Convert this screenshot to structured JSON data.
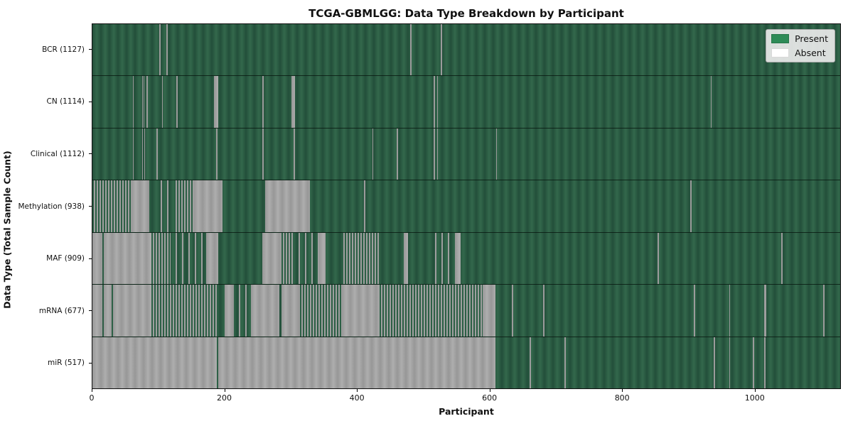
{
  "title": "TCGA-GBMLGG: Data Type Breakdown by Participant",
  "x_axis_label": "Participant",
  "y_axis_label": "Data Type (Total Sample Count)",
  "legend": {
    "present_label": "Present",
    "absent_label": "Absent",
    "present_color": "#2e8b57",
    "absent_color": "#ffffff"
  },
  "colors": {
    "present_fill_dark": "#234f3a",
    "present_fill_light": "#33684c",
    "absent_fill_dark": "#979797",
    "absent_fill_light": "#aeaeae"
  },
  "chart_data": {
    "type": "heatmap",
    "title": "TCGA-GBMLGG: Data Type Breakdown by Participant",
    "xlabel": "Participant",
    "ylabel": "Data Type (Total Sample Count)",
    "x_range": [
      0,
      1130
    ],
    "x_ticks": [
      0,
      200,
      400,
      600,
      800,
      1000
    ],
    "legend_entries": [
      "Present",
      "Absent"
    ],
    "legend_position": "upper right",
    "grid": false,
    "cell_states": {
      "a": "absent",
      "m": "mixed_present_absent",
      "s": "sparse_absent_lines"
    },
    "rows": [
      {
        "label": "BCR (1127)",
        "name": "BCR",
        "total_samples": 1127,
        "segments": [
          [
            101,
            103,
            "a"
          ],
          [
            112,
            114,
            "a"
          ],
          [
            480,
            482,
            "a"
          ],
          [
            526,
            528,
            "a"
          ]
        ]
      },
      {
        "label": "CN (1114)",
        "name": "CN",
        "total_samples": 1114,
        "segments": [
          [
            61,
            62.5,
            "a"
          ],
          [
            75,
            76,
            "a"
          ],
          [
            77,
            78.5,
            "a"
          ],
          [
            82,
            83.5,
            "a"
          ],
          [
            105,
            106.5,
            "a"
          ],
          [
            127,
            128.5,
            "a"
          ],
          [
            184,
            190,
            "a"
          ],
          [
            257,
            258.5,
            "a"
          ],
          [
            301,
            306,
            "a"
          ],
          [
            516,
            517.5,
            "a"
          ],
          [
            521,
            522.5,
            "a"
          ],
          [
            934,
            936,
            "a"
          ]
        ]
      },
      {
        "label": "Clinical (1112)",
        "name": "Clinical",
        "total_samples": 1112,
        "segments": [
          [
            61,
            62.5,
            "a"
          ],
          [
            75,
            76.5,
            "a"
          ],
          [
            78,
            79.5,
            "a"
          ],
          [
            97,
            98.5,
            "a"
          ],
          [
            187,
            189,
            "a"
          ],
          [
            257,
            259,
            "a"
          ],
          [
            304,
            306,
            "a"
          ],
          [
            423,
            424.5,
            "a"
          ],
          [
            460,
            461.5,
            "a"
          ],
          [
            516,
            518,
            "a"
          ],
          [
            521,
            522.5,
            "a"
          ],
          [
            610,
            611.5,
            "a"
          ]
        ]
      },
      {
        "label": "Methylation (938)",
        "name": "Methylation",
        "total_samples": 938,
        "segments": [
          [
            0,
            59,
            "m"
          ],
          [
            59,
            86,
            "a"
          ],
          [
            96,
            123,
            "s"
          ],
          [
            123,
            154,
            "m"
          ],
          [
            154,
            197,
            "a"
          ],
          [
            261,
            329,
            "a"
          ],
          [
            410,
            412,
            "a"
          ],
          [
            903,
            905,
            "a"
          ]
        ]
      },
      {
        "label": "MAF (909)",
        "name": "MAF",
        "total_samples": 909,
        "segments": [
          [
            0,
            15,
            "a"
          ],
          [
            17,
            89,
            "a"
          ],
          [
            89,
            118,
            "m"
          ],
          [
            118,
            172,
            "s"
          ],
          [
            172,
            190,
            "a"
          ],
          [
            257,
            286,
            "a"
          ],
          [
            286,
            304,
            "m"
          ],
          [
            304,
            343,
            "s"
          ],
          [
            343,
            352,
            "a"
          ],
          [
            377,
            434,
            "m"
          ],
          [
            471,
            477,
            "a"
          ],
          [
            510,
            545,
            "s"
          ],
          [
            548,
            556,
            "a"
          ],
          [
            854,
            856,
            "a"
          ],
          [
            1041,
            1043,
            "a"
          ]
        ]
      },
      {
        "label": "mRNA (677)",
        "name": "mRNA",
        "total_samples": 677,
        "segments": [
          [
            0,
            15,
            "a"
          ],
          [
            17,
            29,
            "a"
          ],
          [
            31,
            89,
            "a"
          ],
          [
            89,
            190,
            "m"
          ],
          [
            200,
            214,
            "a"
          ],
          [
            214,
            239,
            "s"
          ],
          [
            239,
            282,
            "a"
          ],
          [
            286,
            314,
            "a"
          ],
          [
            314,
            377,
            "m"
          ],
          [
            377,
            434,
            "a"
          ],
          [
            434,
            590,
            "m"
          ],
          [
            590,
            609,
            "a"
          ],
          [
            634,
            636,
            "a"
          ],
          [
            681,
            683,
            "a"
          ],
          [
            909,
            911,
            "a"
          ],
          [
            962,
            964,
            "a"
          ],
          [
            1015,
            1018,
            "a"
          ],
          [
            1104,
            1106,
            "a"
          ]
        ]
      },
      {
        "label": "miR (517)",
        "name": "miR",
        "total_samples": 517,
        "segments": [
          [
            0,
            188,
            "a"
          ],
          [
            190,
            609,
            "a"
          ],
          [
            661,
            663,
            "a"
          ],
          [
            713,
            715,
            "a"
          ],
          [
            939,
            941,
            "a"
          ],
          [
            962,
            964,
            "a"
          ],
          [
            998,
            1000,
            "a"
          ],
          [
            1015,
            1017,
            "a"
          ]
        ]
      }
    ]
  }
}
